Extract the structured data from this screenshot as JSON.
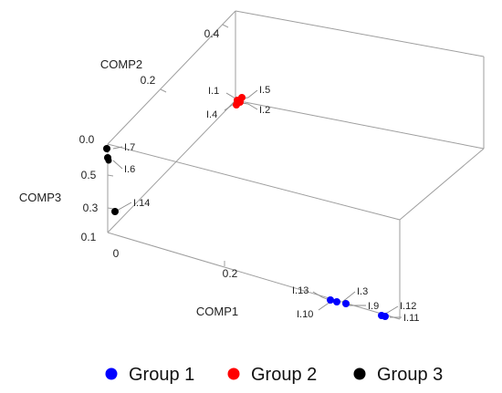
{
  "chart_data": {
    "type": "scatter3d",
    "axes": {
      "x": {
        "label": "COMP1",
        "ticks": [
          "0",
          "0.2"
        ]
      },
      "y": {
        "label": "COMP2",
        "ticks": [
          "0.0",
          "0.2",
          "0.4"
        ]
      },
      "z": {
        "label": "COMP3",
        "ticks": [
          "0.1",
          "0.3",
          "0.5"
        ]
      }
    },
    "legend_position": "bottom",
    "series": [
      {
        "name": "Group 1",
        "color": "#0000ff",
        "points": [
          "I.3",
          "I.9",
          "I.10",
          "I.11",
          "I.12",
          "I.13"
        ]
      },
      {
        "name": "Group 2",
        "color": "#ff0000",
        "points": [
          "I.1",
          "I.2",
          "I.4",
          "I.5"
        ]
      },
      {
        "name": "Group 3",
        "color": "#000000",
        "points": [
          "I.6",
          "I.7",
          "I.14"
        ]
      }
    ]
  }
}
